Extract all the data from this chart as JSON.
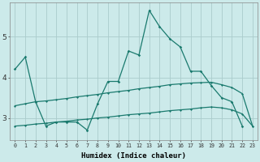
{
  "x": [
    0,
    1,
    2,
    3,
    4,
    5,
    6,
    7,
    8,
    9,
    10,
    11,
    12,
    13,
    14,
    15,
    16,
    17,
    18,
    19,
    20,
    21,
    22,
    23
  ],
  "line_main": [
    4.2,
    4.5,
    3.4,
    2.8,
    2.9,
    2.9,
    2.9,
    2.7,
    3.35,
    3.9,
    3.9,
    4.65,
    4.55,
    5.65,
    5.25,
    4.95,
    4.75,
    4.15,
    4.15,
    3.8,
    3.5,
    3.4,
    2.8,
    null
  ],
  "line_trend_upper": [
    3.3,
    3.35,
    3.4,
    3.42,
    3.45,
    3.48,
    3.52,
    3.55,
    3.58,
    3.62,
    3.65,
    3.68,
    3.72,
    3.75,
    3.78,
    3.82,
    3.84,
    3.86,
    3.87,
    3.88,
    3.82,
    3.75,
    3.6,
    2.8
  ],
  "line_trend_lower": [
    2.8,
    2.82,
    2.85,
    2.87,
    2.9,
    2.92,
    2.95,
    2.97,
    3.0,
    3.02,
    3.05,
    3.08,
    3.1,
    3.12,
    3.15,
    3.18,
    3.2,
    3.22,
    3.25,
    3.27,
    3.25,
    3.2,
    3.1,
    2.8
  ],
  "main_color": "#1a7a6e",
  "bg_color": "#cceaea",
  "grid_color": "#aacccc",
  "xlabel": "Humidex (Indice chaleur)",
  "yticks": [
    3,
    4,
    5
  ],
  "ylim": [
    2.45,
    5.85
  ],
  "xlim": [
    -0.5,
    23.5
  ]
}
